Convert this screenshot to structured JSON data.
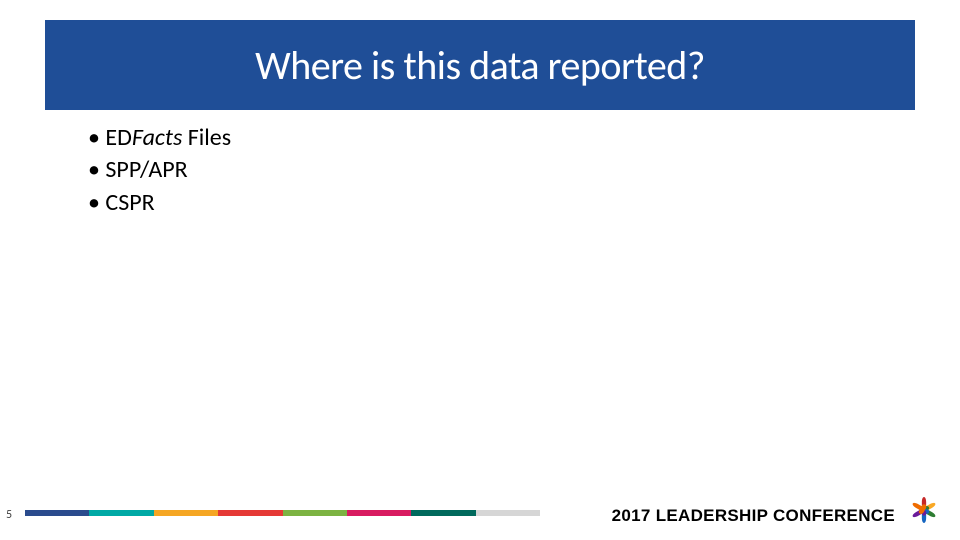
{
  "slide": {
    "title": "Where is this data reported?",
    "title_band_color": "#1f4e97",
    "title_text_color": "#ffffff",
    "bullets_prefix": "ED",
    "bullets_italic": "Facts",
    "bullets_suffix": " Files",
    "bullet_2": "SPP/APR",
    "bullet_3": "CSPR",
    "page_number": "5",
    "footer_text": "2017 LEADERSHIP CONFERENCE",
    "footer_colors": [
      "#2a4b8d",
      "#00a9a5",
      "#f5a623",
      "#e53935",
      "#7cb342",
      "#d81b60",
      "#00695c",
      "#d6d6d6"
    ],
    "logo_colors": [
      "#c62828",
      "#f9a825",
      "#2e7d32",
      "#1565c0",
      "#6a1b9a",
      "#ef6c00"
    ]
  }
}
